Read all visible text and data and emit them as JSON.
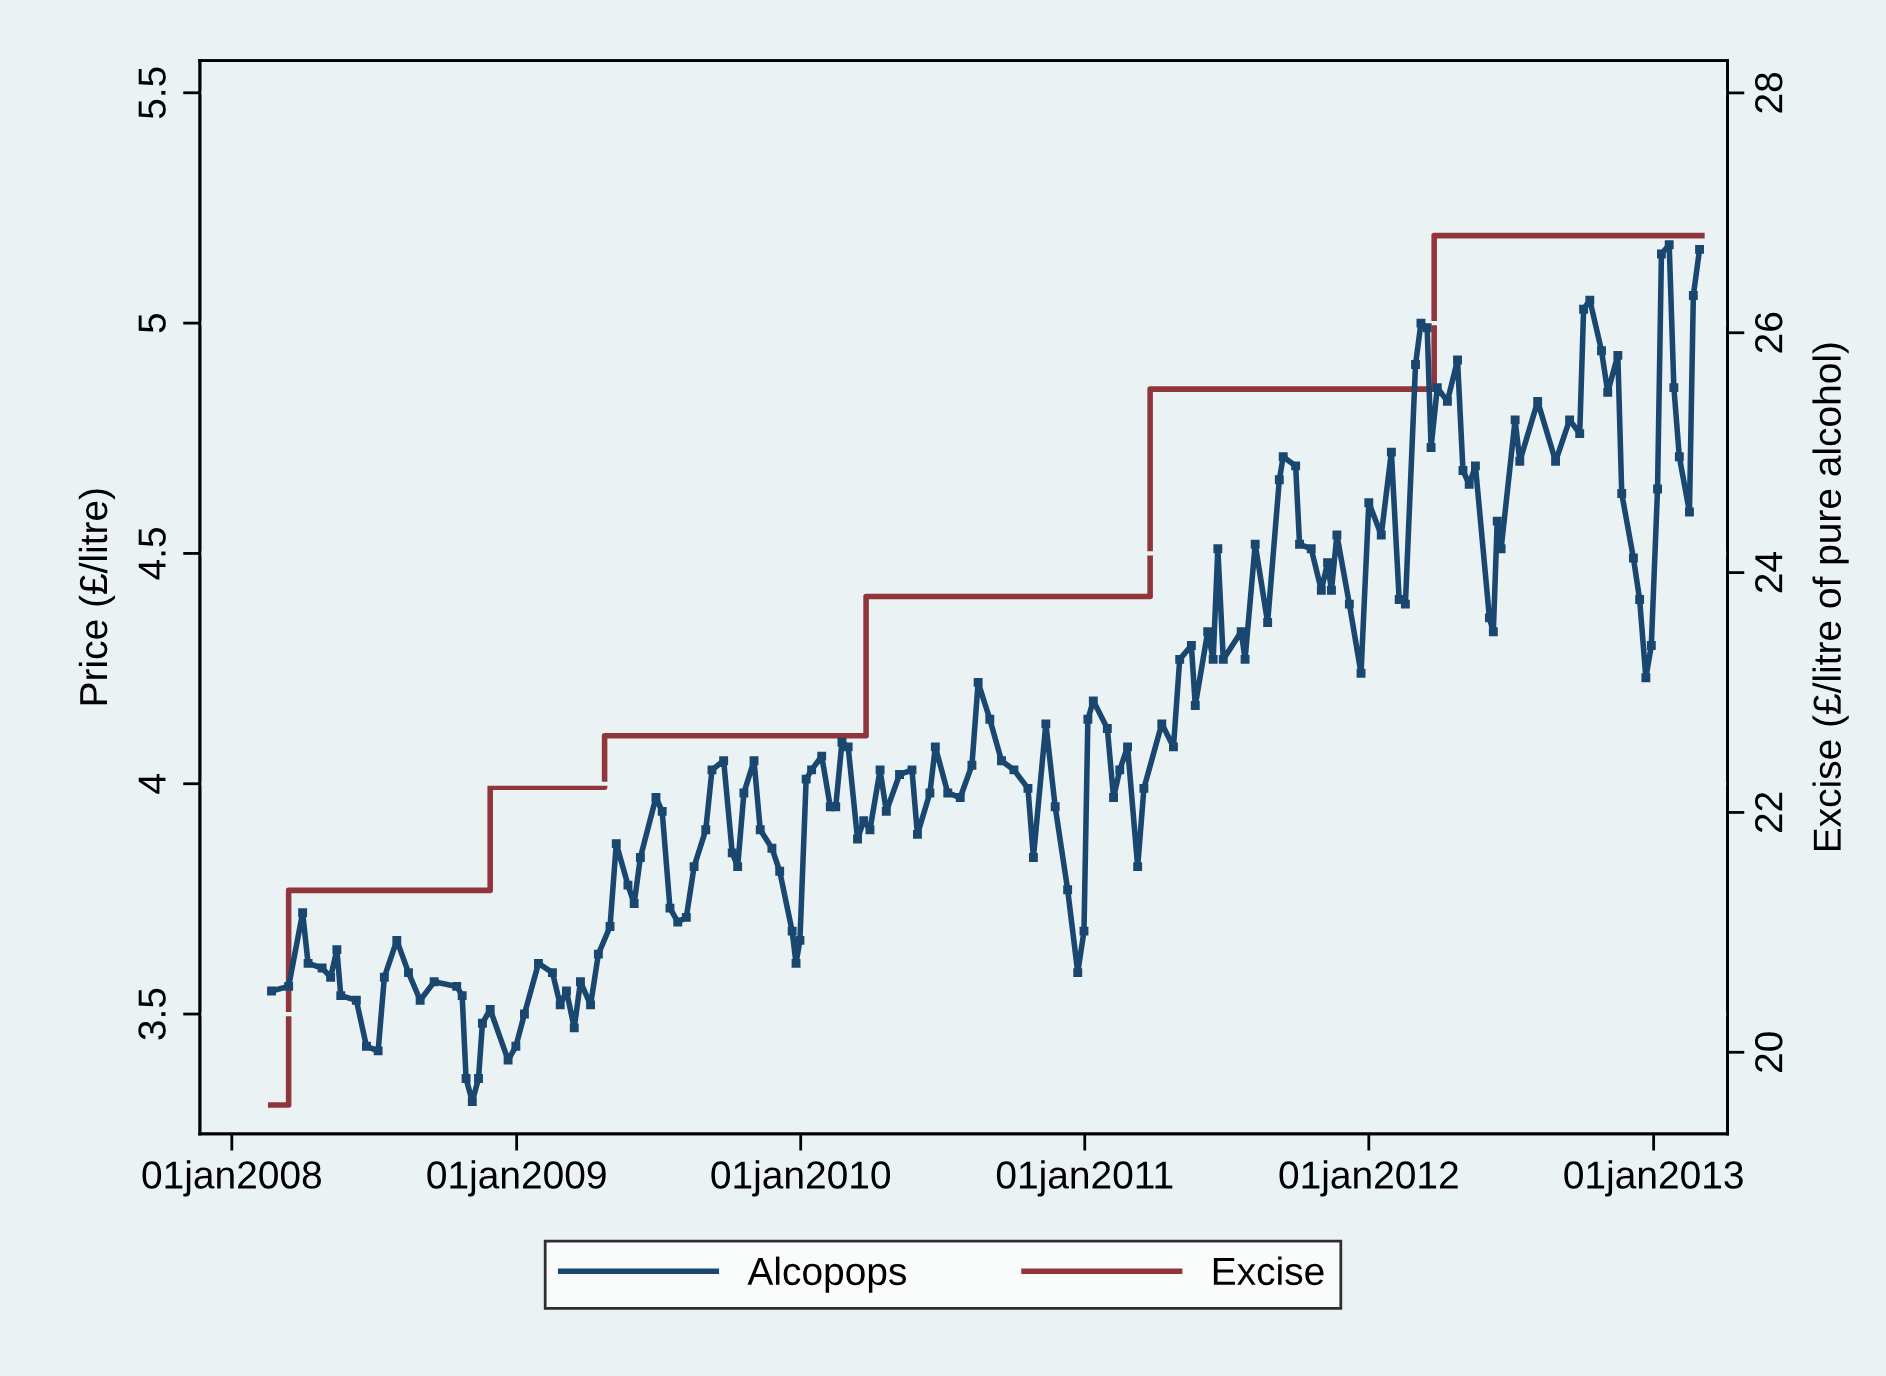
{
  "chart_data": {
    "type": "line",
    "xlim": [
      "2007-11-21",
      "2013-04-06"
    ],
    "xticks": [
      {
        "value": "2008-01-01",
        "label": "01jan2008"
      },
      {
        "value": "2009-01-01",
        "label": "01jan2009"
      },
      {
        "value": "2010-01-01",
        "label": "01jan2010"
      },
      {
        "value": "2011-01-01",
        "label": "01jan2011"
      },
      {
        "value": "2012-01-01",
        "label": "01jan2012"
      },
      {
        "value": "2013-01-01",
        "label": "01jan2013"
      }
    ],
    "ylim": [
      3.24,
      5.57
    ],
    "yticks": [
      3.5,
      4,
      4.5,
      5,
      5.5
    ],
    "y2lim": [
      19.32,
      28.27
    ],
    "y2ticks": [
      20,
      22,
      24,
      26,
      28
    ],
    "ylabel": "Price (£/litre)",
    "y2label": "Excise (£/litre of pure alcohol)",
    "grid": "y",
    "legend": "bottom",
    "series": [
      {
        "name": "Alcopops",
        "color": "#1a476f",
        "marker": "square",
        "x": [
          "2008-02-21",
          "2008-03-14",
          "2008-04-01",
          "2008-04-08",
          "2008-04-26",
          "2008-05-07",
          "2008-05-15",
          "2008-05-20",
          "2008-06-09",
          "2008-06-22",
          "2008-07-07",
          "2008-07-15",
          "2008-07-31",
          "2008-08-15",
          "2008-08-30",
          "2008-09-17",
          "2008-10-16",
          "2008-10-23",
          "2008-10-28",
          "2008-11-05",
          "2008-11-13",
          "2008-11-18",
          "2008-11-28",
          "2008-12-21",
          "2008-12-31",
          "2009-01-11",
          "2009-01-29",
          "2009-02-16",
          "2009-02-26",
          "2009-03-06",
          "2009-03-16",
          "2009-03-24",
          "2009-04-06",
          "2009-04-16",
          "2009-05-01",
          "2009-05-09",
          "2009-05-24",
          "2009-06-01",
          "2009-06-09",
          "2009-06-29",
          "2009-07-07",
          "2009-07-17",
          "2009-07-27",
          "2009-08-07",
          "2009-08-17",
          "2009-09-01",
          "2009-09-09",
          "2009-09-24",
          "2009-10-05",
          "2009-10-12",
          "2009-10-20",
          "2009-11-02",
          "2009-11-10",
          "2009-11-25",
          "2009-12-05",
          "2009-12-21",
          "2009-12-26",
          "2009-12-31",
          "2010-01-08",
          "2010-01-15",
          "2010-01-28",
          "2010-02-08",
          "2010-02-15",
          "2010-02-23",
          "2010-03-03",
          "2010-03-15",
          "2010-03-23",
          "2010-03-31",
          "2010-04-13",
          "2010-04-21",
          "2010-05-08",
          "2010-05-24",
          "2010-05-31",
          "2010-06-16",
          "2010-06-23",
          "2010-07-09",
          "2010-07-25",
          "2010-08-09",
          "2010-08-17",
          "2010-09-01",
          "2010-09-16",
          "2010-10-02",
          "2010-10-20",
          "2010-10-27",
          "2010-11-12",
          "2010-11-24",
          "2010-12-10",
          "2010-12-23",
          "2010-12-31",
          "2011-01-05",
          "2011-01-12",
          "2011-01-30",
          "2011-02-07",
          "2011-02-15",
          "2011-02-25",
          "2011-03-10",
          "2011-03-18",
          "2011-04-10",
          "2011-04-25",
          "2011-05-03",
          "2011-05-18",
          "2011-05-23",
          "2011-06-08",
          "2011-06-15",
          "2011-06-21",
          "2011-06-28",
          "2011-07-21",
          "2011-07-26",
          "2011-08-08",
          "2011-08-24",
          "2011-09-08",
          "2011-09-13",
          "2011-09-29",
          "2011-10-04",
          "2011-10-19",
          "2011-11-01",
          "2011-11-09",
          "2011-11-14",
          "2011-11-21",
          "2011-12-07",
          "2011-12-22",
          "2012-01-01",
          "2012-01-17",
          "2012-01-30",
          "2012-02-09",
          "2012-02-17",
          "2012-03-01",
          "2012-03-08",
          "2012-03-16",
          "2012-03-21",
          "2012-03-29",
          "2012-04-11",
          "2012-04-24",
          "2012-05-01",
          "2012-05-09",
          "2012-05-17",
          "2012-06-04",
          "2012-06-09",
          "2012-06-14",
          "2012-06-19",
          "2012-07-07",
          "2012-07-13",
          "2012-08-05",
          "2012-08-28",
          "2012-09-15",
          "2012-09-28",
          "2012-10-03",
          "2012-10-11",
          "2012-10-26",
          "2012-11-03",
          "2012-11-16",
          "2012-11-21",
          "2012-12-06",
          "2012-12-14",
          "2012-12-22",
          "2012-12-29",
          "2013-01-06",
          "2013-01-11",
          "2013-01-21",
          "2013-01-27",
          "2013-02-03",
          "2013-02-16",
          "2013-02-21",
          "2013-03-01"
        ],
        "values": [
          3.55,
          3.56,
          3.72,
          3.61,
          3.6,
          3.58,
          3.64,
          3.54,
          3.53,
          3.43,
          3.42,
          3.58,
          3.66,
          3.59,
          3.53,
          3.57,
          3.56,
          3.54,
          3.36,
          3.31,
          3.36,
          3.48,
          3.51,
          3.4,
          3.43,
          3.5,
          3.61,
          3.59,
          3.52,
          3.55,
          3.47,
          3.57,
          3.52,
          3.63,
          3.69,
          3.87,
          3.78,
          3.74,
          3.84,
          3.97,
          3.94,
          3.73,
          3.7,
          3.71,
          3.82,
          3.9,
          4.03,
          4.05,
          3.85,
          3.82,
          3.98,
          4.05,
          3.9,
          3.86,
          3.81,
          3.68,
          3.61,
          3.66,
          4.01,
          4.03,
          4.06,
          3.95,
          3.95,
          4.09,
          4.08,
          3.88,
          3.92,
          3.9,
          4.03,
          3.94,
          4.02,
          4.03,
          3.89,
          3.98,
          4.08,
          3.98,
          3.97,
          4.04,
          4.22,
          4.14,
          4.05,
          4.03,
          3.99,
          3.84,
          4.13,
          3.95,
          3.77,
          3.59,
          3.68,
          4.14,
          4.18,
          4.12,
          3.97,
          4.03,
          4.08,
          3.82,
          3.99,
          4.13,
          4.08,
          4.27,
          4.3,
          4.17,
          4.33,
          4.27,
          4.51,
          4.27,
          4.33,
          4.27,
          4.52,
          4.35,
          4.66,
          4.71,
          4.69,
          4.52,
          4.51,
          4.42,
          4.48,
          4.42,
          4.54,
          4.39,
          4.24,
          4.61,
          4.54,
          4.72,
          4.4,
          4.39,
          4.91,
          5.0,
          4.99,
          4.73,
          4.86,
          4.83,
          4.92,
          4.68,
          4.65,
          4.69,
          4.36,
          4.33,
          4.57,
          4.51,
          4.79,
          4.7,
          4.83,
          4.7,
          4.79,
          4.76,
          5.03,
          5.05,
          4.94,
          4.85,
          4.93,
          4.63,
          4.49,
          4.4,
          4.23,
          4.3,
          4.64,
          5.15,
          5.17,
          4.86,
          4.71,
          4.59,
          5.06,
          5.16
        ]
      },
      {
        "name": "Excise",
        "color": "#90353b",
        "type": "step",
        "axis": "y2",
        "marker": "none",
        "x": [
          "2008-02-20",
          "2008-03-14",
          "2008-11-28",
          "2009-04-24",
          "2010-03-26",
          "2011-03-26",
          "2012-03-25",
          "2013-03-04"
        ],
        "values": [
          19.56,
          21.35,
          22.21,
          22.64,
          23.8,
          25.53,
          26.81,
          26.81
        ]
      }
    ]
  }
}
